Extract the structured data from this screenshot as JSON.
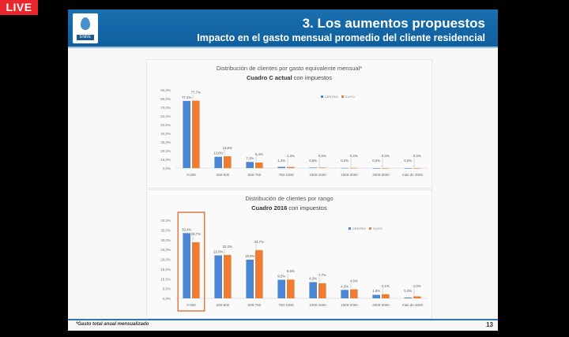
{
  "live_badge": "LIVE",
  "slide": {
    "title": "3. Los aumentos propuestos",
    "subtitle": "Impacto en el gasto mensual promedio del cliente residencial",
    "logo_text": "ENRE",
    "footnote": "*Gasto total anual mensualizado",
    "page_number": "13"
  },
  "colors": {
    "centro": "#4a86d4",
    "cuyo": "#ee7d31",
    "highlight": "#e0662a"
  },
  "chart_data": [
    {
      "type": "bar",
      "title": "Distribución de clientes por gasto equivalente mensual*",
      "subtitle_bold": "Cuadro C actual",
      "subtitle_rest": " con impuestos",
      "categories": [
        "0-250",
        "250-500",
        "500-750",
        "750-1000",
        "1000-1500",
        "1500-2000",
        "2000-3000",
        "más de 3000"
      ],
      "series": [
        {
          "name": "CENTRO",
          "values": [
            77.4,
            13.0,
            7.1,
            1.4,
            0.6,
            0.2,
            0.0,
            0.0
          ],
          "labels": [
            "77,4%",
            "13,0%",
            "7,1%",
            "1,4%",
            "0,6%",
            "0,2%",
            "0,0%",
            "0,0%"
          ]
        },
        {
          "name": "CUYO",
          "values": [
            77.7,
            13.6,
            6.4,
            1.3,
            0.6,
            0.2,
            0.0,
            0.0
          ],
          "labels": [
            "77,7%",
            "13,6%",
            "6,4%",
            "1,3%",
            "0,6%",
            "0,2%",
            "0,0%",
            "0,0%"
          ]
        }
      ],
      "yticks": [
        "0,0%",
        "10,0%",
        "20,0%",
        "30,0%",
        "40,0%",
        "50,0%",
        "60,0%",
        "70,0%",
        "80,0%",
        "90,0%"
      ],
      "ylim": [
        0,
        90
      ],
      "legend": "top-right",
      "highlight_category": null
    },
    {
      "type": "bar",
      "title": "Distribución de clientes por rango",
      "subtitle_bold": "Cuadro 2016",
      "subtitle_rest": " con impuestos",
      "categories": [
        "0-250",
        "250-500",
        "500-750",
        "750-1000",
        "1000-1500",
        "1500-2000",
        "2000-3000",
        "más de 3000"
      ],
      "series": [
        {
          "name": "CENTRO",
          "values": [
            33.4,
            22.0,
            19.8,
            9.5,
            8.3,
            4.3,
            1.8,
            0.4
          ],
          "labels": [
            "33,4%",
            "22,0%",
            "19,8%",
            "9,5%",
            "8,3%",
            "4,3%",
            "1,8%",
            "0,4%"
          ]
        },
        {
          "name": "CUYO",
          "values": [
            28.7,
            22.2,
            24.7,
            9.6,
            7.7,
            4.6,
            2.1,
            1.0
          ],
          "labels": [
            "28,7%",
            "22,2%",
            "24,7%",
            "9,6%",
            "7,7%",
            "4,6%",
            "2,1%",
            "1,0%"
          ]
        }
      ],
      "yticks": [
        "0,0%",
        "5,0%",
        "10,0%",
        "15,0%",
        "20,0%",
        "25,0%",
        "30,0%",
        "35,0%",
        "40,0%"
      ],
      "ylim": [
        0,
        40
      ],
      "legend": "top-right",
      "highlight_category": 0
    }
  ]
}
